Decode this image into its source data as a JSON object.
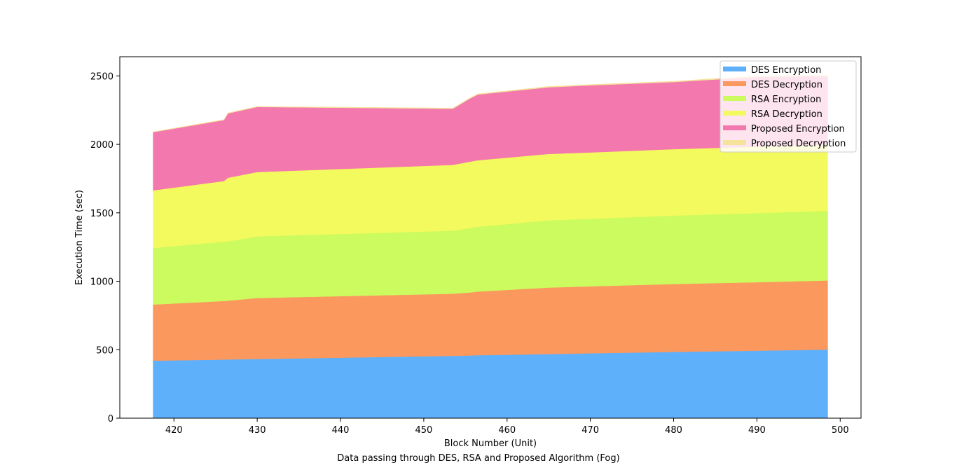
{
  "chart_data": {
    "type": "area",
    "stacked": true,
    "title": "",
    "xlabel": "Block Number (Unit)",
    "subtitle": "Data passing through DES, RSA and Proposed Algorithm (Fog)",
    "ylabel": "Execution Time (sec)",
    "xlim": [
      413.5,
      502.5
    ],
    "ylim": [
      0,
      2640
    ],
    "xticks": [
      420,
      430,
      440,
      450,
      460,
      470,
      480,
      490,
      500
    ],
    "yticks": [
      0,
      500,
      1000,
      1500,
      2000,
      2500
    ],
    "legend_position": "top-right",
    "x": [
      417.5,
      426,
      426.5,
      430,
      453.5,
      455.5,
      456.5,
      465,
      470,
      480,
      490,
      498.5
    ],
    "series": [
      {
        "name": "DES Encryption",
        "color": "#5eb0fb",
        "values": [
          420,
          428,
          429,
          432,
          455,
          458,
          460,
          468,
          474,
          484,
          493,
          501
        ]
      },
      {
        "name": "DES Decryption",
        "color": "#fb985e",
        "values": [
          410,
          428,
          429,
          446,
          454,
          460,
          465,
          486,
          489,
          496,
          500,
          505
        ]
      },
      {
        "name": "RSA Encryption",
        "color": "#cbfb5e",
        "values": [
          413,
          433,
          433,
          450,
          460,
          470,
          473,
          491,
          494,
          500,
          505,
          508
        ]
      },
      {
        "name": "RSA Decryption",
        "color": "#f3fa5e",
        "values": [
          421,
          443,
          465,
          470,
          481,
          485,
          486,
          485,
          484,
          485,
          485,
          485
        ]
      },
      {
        "name": "Proposed Encryption",
        "color": "#f378ae",
        "values": [
          425,
          445,
          470,
          475,
          410,
          460,
          480,
          487,
          490,
          490,
          510,
          500
        ]
      },
      {
        "name": "Proposed Decryption",
        "color": "#f5e29b",
        "values": [
          3,
          4,
          4,
          4,
          5,
          5,
          5,
          6,
          6,
          6,
          7,
          7
        ]
      }
    ]
  }
}
